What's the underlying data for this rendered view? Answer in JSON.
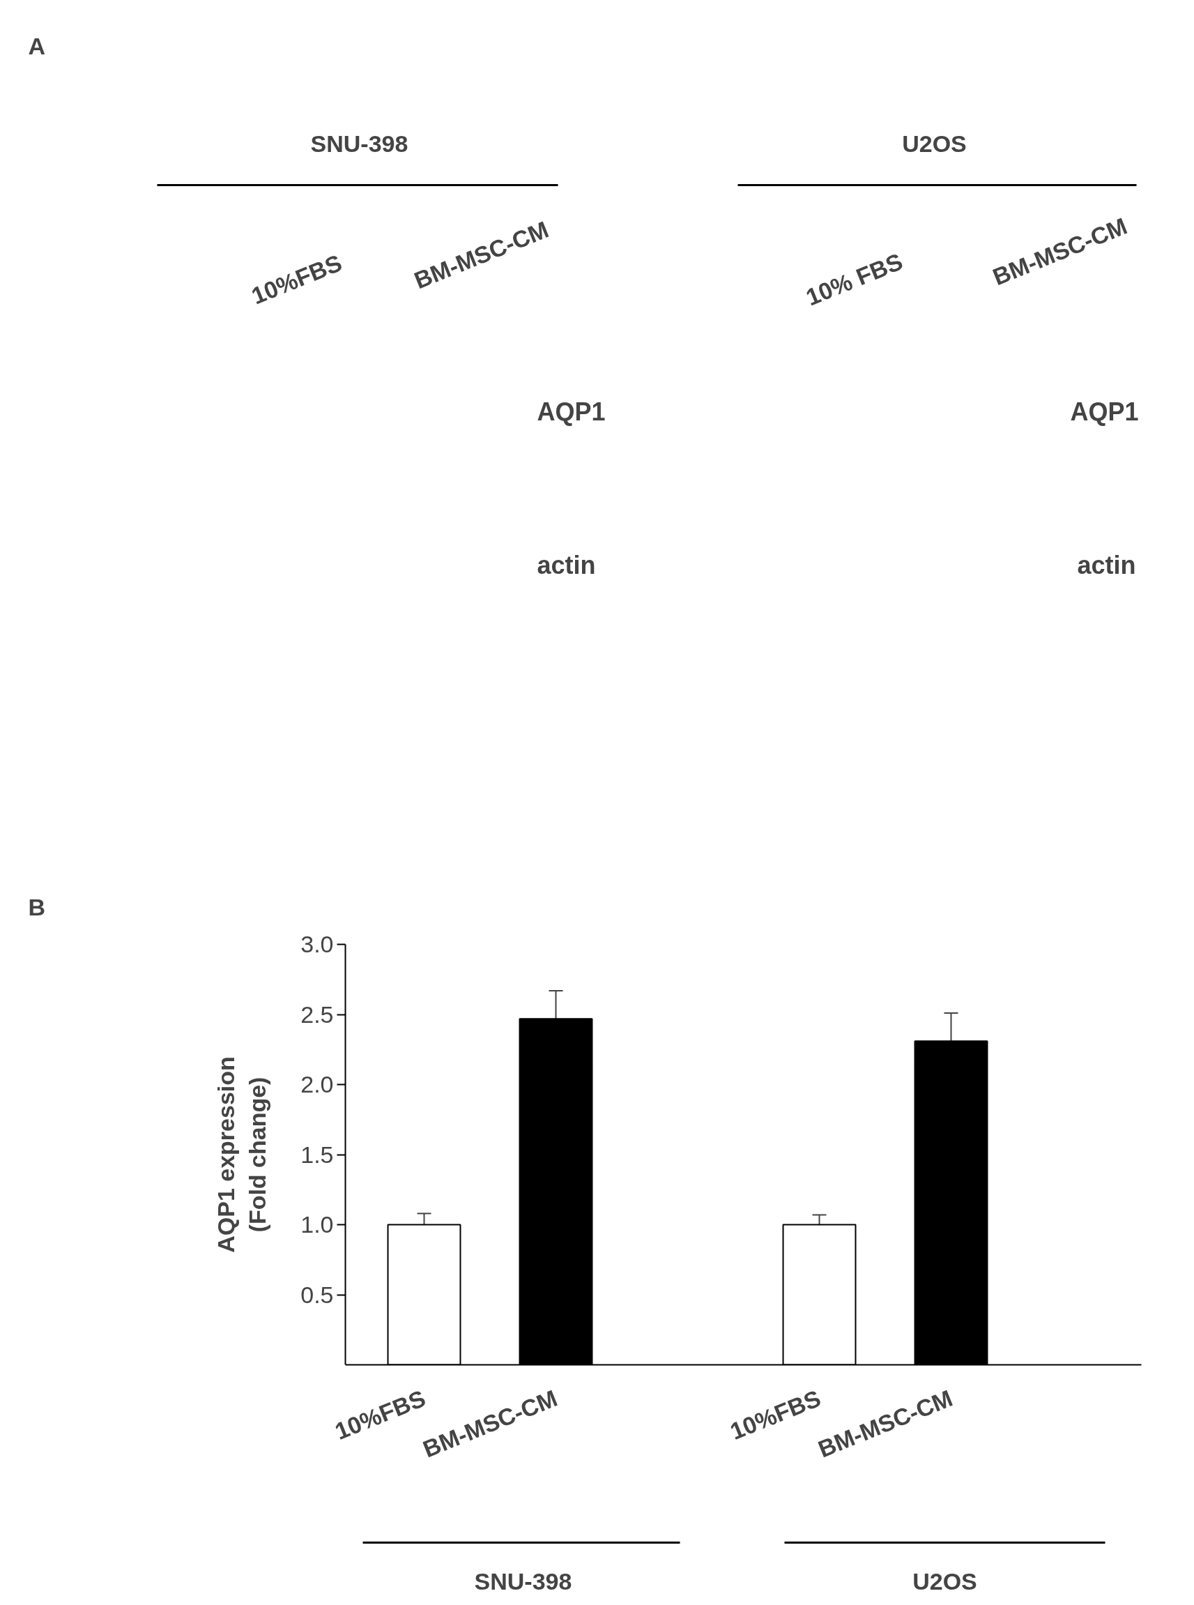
{
  "chart_data": {
    "type": "bar",
    "ylabel": "AQP1 expression\n(Fold change)",
    "categories": [
      "10%FBS",
      "BM-MSC-CM",
      null,
      "10%FBS",
      "BM-MSC-CM"
    ],
    "values": [
      1.0,
      2.47,
      null,
      1.0,
      2.31
    ],
    "errors": [
      0.08,
      0.2,
      null,
      0.07,
      0.2
    ],
    "colors": [
      "#ffffff",
      "#000000",
      "#ffffff",
      "#ffffff",
      "#000000"
    ],
    "ylim": [
      0,
      3
    ],
    "yticks": [
      0.5,
      {
        "value": 1,
        "label": "1.0"
      },
      1.5,
      {
        "value": 2,
        "label": "2.0"
      },
      2.5,
      {
        "value": 3,
        "label": "3.0"
      }
    ],
    "grid": false,
    "annotations": [
      "A",
      "SNU-398",
      "U2OS",
      "10%FBS",
      "BM-MSC-CM",
      "10% FBS",
      "BM-MSC-CM",
      "AQP1",
      "actin",
      "AQP1",
      "actin",
      "B",
      "SNU-398",
      "U2OS"
    ]
  }
}
